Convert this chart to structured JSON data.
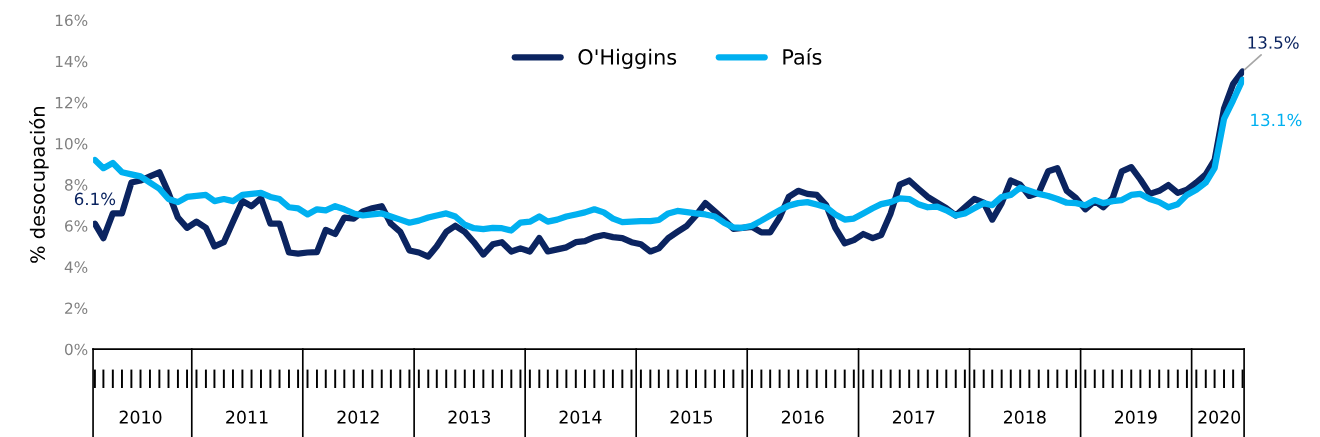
{
  "chart_data": {
    "type": "line",
    "ylabel": "% desocupación",
    "x": [
      "2010-02",
      "2010-03",
      "2010-04",
      "2010-05",
      "2010-06",
      "2010-07",
      "2010-08",
      "2010-09",
      "2010-10",
      "2010-11",
      "2010-12",
      "2011-01",
      "2011-02",
      "2011-03",
      "2011-04",
      "2011-05",
      "2011-06",
      "2011-07",
      "2011-08",
      "2011-09",
      "2011-10",
      "2011-11",
      "2011-12",
      "2012-01",
      "2012-02",
      "2012-03",
      "2012-04",
      "2012-05",
      "2012-06",
      "2012-07",
      "2012-08",
      "2012-09",
      "2012-10",
      "2012-11",
      "2012-12",
      "2013-01",
      "2013-02",
      "2013-03",
      "2013-04",
      "2013-05",
      "2013-06",
      "2013-07",
      "2013-08",
      "2013-09",
      "2013-10",
      "2013-11",
      "2013-12",
      "2014-01",
      "2014-02",
      "2014-03",
      "2014-04",
      "2014-05",
      "2014-06",
      "2014-07",
      "2014-08",
      "2014-09",
      "2014-10",
      "2014-11",
      "2014-12",
      "2015-01",
      "2015-02",
      "2015-03",
      "2015-04",
      "2015-05",
      "2015-06",
      "2015-07",
      "2015-08",
      "2015-09",
      "2015-10",
      "2015-11",
      "2015-12",
      "2016-01",
      "2016-02",
      "2016-03",
      "2016-04",
      "2016-05",
      "2016-06",
      "2016-07",
      "2016-08",
      "2016-09",
      "2016-10",
      "2016-11",
      "2016-12",
      "2017-01",
      "2017-02",
      "2017-03",
      "2017-04",
      "2017-05",
      "2017-06",
      "2017-07",
      "2017-08",
      "2017-09",
      "2017-10",
      "2017-11",
      "2017-12",
      "2018-01",
      "2018-02",
      "2018-03",
      "2018-04",
      "2018-05",
      "2018-06",
      "2018-07",
      "2018-08",
      "2018-09",
      "2018-10",
      "2018-11",
      "2018-12",
      "2019-01",
      "2019-02",
      "2019-03",
      "2019-04",
      "2019-05",
      "2019-06",
      "2019-07",
      "2019-08",
      "2019-09",
      "2019-10",
      "2019-11",
      "2019-12",
      "2020-01",
      "2020-02",
      "2020-03",
      "2020-04",
      "2020-05",
      "2020-06"
    ],
    "series": [
      {
        "name": "O'Higgins",
        "color": "#0b2460",
        "values": [
          6.1,
          5.4,
          6.6,
          6.6,
          8.1,
          8.2,
          8.4,
          8.6,
          7.6,
          6.4,
          5.9,
          6.2,
          5.9,
          5.0,
          5.2,
          6.2,
          7.2,
          6.95,
          7.35,
          6.1,
          6.1,
          4.7,
          4.65,
          4.7,
          4.72,
          5.8,
          5.6,
          6.4,
          6.35,
          6.7,
          6.85,
          6.95,
          6.1,
          5.7,
          4.8,
          4.7,
          4.5,
          5.0,
          5.7,
          6.0,
          5.7,
          5.2,
          4.6,
          5.1,
          5.2,
          4.75,
          4.9,
          4.75,
          5.4,
          4.75,
          4.85,
          4.95,
          5.2,
          5.25,
          5.45,
          5.55,
          5.45,
          5.4,
          5.2,
          5.1,
          4.75,
          4.9,
          5.4,
          5.7,
          6.0,
          6.5,
          7.1,
          6.7,
          6.3,
          5.85,
          5.9,
          5.95,
          5.68,
          5.68,
          6.4,
          7.4,
          7.7,
          7.55,
          7.5,
          7.0,
          5.9,
          5.15,
          5.3,
          5.6,
          5.4,
          5.55,
          6.6,
          8.0,
          8.2,
          7.8,
          7.4,
          7.12,
          6.85,
          6.5,
          6.9,
          7.3,
          7.12,
          6.3,
          7.1,
          8.2,
          8.0,
          7.45,
          7.6,
          8.65,
          8.8,
          7.7,
          7.35,
          6.8,
          7.2,
          6.9,
          7.35,
          8.65,
          8.85,
          8.25,
          7.55,
          7.7,
          7.98,
          7.6,
          7.75,
          8.1,
          8.5,
          9.2,
          11.7,
          12.9,
          13.5
        ]
      },
      {
        "name": "País",
        "color": "#00b0f0",
        "values": [
          9.2,
          8.8,
          9.05,
          8.6,
          8.5,
          8.4,
          8.1,
          7.8,
          7.3,
          7.15,
          7.4,
          7.45,
          7.5,
          7.2,
          7.3,
          7.2,
          7.5,
          7.55,
          7.6,
          7.4,
          7.3,
          6.9,
          6.85,
          6.55,
          6.8,
          6.75,
          6.95,
          6.8,
          6.6,
          6.5,
          6.55,
          6.6,
          6.45,
          6.3,
          6.15,
          6.25,
          6.4,
          6.5,
          6.6,
          6.45,
          6.05,
          5.88,
          5.84,
          5.9,
          5.88,
          5.77,
          6.15,
          6.2,
          6.45,
          6.2,
          6.3,
          6.45,
          6.55,
          6.65,
          6.8,
          6.65,
          6.35,
          6.18,
          6.2,
          6.23,
          6.23,
          6.28,
          6.6,
          6.72,
          6.66,
          6.6,
          6.55,
          6.45,
          6.15,
          5.92,
          5.9,
          6.0,
          6.25,
          6.5,
          6.75,
          6.98,
          7.1,
          7.15,
          7.03,
          6.9,
          6.55,
          6.3,
          6.35,
          6.6,
          6.85,
          7.05,
          7.15,
          7.33,
          7.3,
          7.05,
          6.9,
          6.93,
          6.75,
          6.5,
          6.6,
          6.85,
          7.1,
          7.0,
          7.4,
          7.5,
          7.85,
          7.7,
          7.55,
          7.45,
          7.3,
          7.12,
          7.1,
          7.0,
          7.25,
          7.1,
          7.2,
          7.25,
          7.5,
          7.55,
          7.3,
          7.15,
          6.9,
          7.05,
          7.5,
          7.75,
          8.1,
          8.8,
          11.2,
          12.1,
          13.1
        ]
      }
    ],
    "xlim": [
      "2010-01-26",
      "2020-06-06"
    ],
    "xticks": [
      {
        "value": "2010-07-01",
        "label": "2010"
      },
      {
        "value": "2011-06-16",
        "label": "2011"
      },
      {
        "value": "2012-06-16",
        "label": "2012"
      },
      {
        "value": "2013-06-16",
        "label": "2013"
      },
      {
        "value": "2014-06-16",
        "label": "2014"
      },
      {
        "value": "2015-06-16",
        "label": "2015"
      },
      {
        "value": "2016-06-16",
        "label": "2016"
      },
      {
        "value": "2017-06-16",
        "label": "2017"
      },
      {
        "value": "2018-06-16",
        "label": "2018"
      },
      {
        "value": "2019-06-16",
        "label": "2019"
      },
      {
        "value": "2020-03-16",
        "label": "2020"
      }
    ],
    "ylim": [
      0,
      16
    ],
    "yticks": [
      {
        "value": 0,
        "label": "0%"
      },
      {
        "value": 2,
        "label": "2%"
      },
      {
        "value": 4,
        "label": "4%"
      },
      {
        "value": 6,
        "label": "6%"
      },
      {
        "value": 8,
        "label": "8%"
      },
      {
        "value": 10,
        "label": "10%"
      },
      {
        "value": 12,
        "label": "12%"
      },
      {
        "value": 14,
        "label": "14%"
      },
      {
        "value": 16,
        "label": "16%"
      }
    ],
    "annotations": [
      {
        "text": "6.1%",
        "x": "2010-02",
        "y": 6.1
      },
      {
        "text": "13.5%",
        "x": "2020-06",
        "y": 13.5
      },
      {
        "text": "13.1%",
        "x": "2020-06",
        "y": 13.1
      }
    ],
    "legend": "top",
    "grid": false,
    "marker": "none",
    "line_style": "solid"
  }
}
